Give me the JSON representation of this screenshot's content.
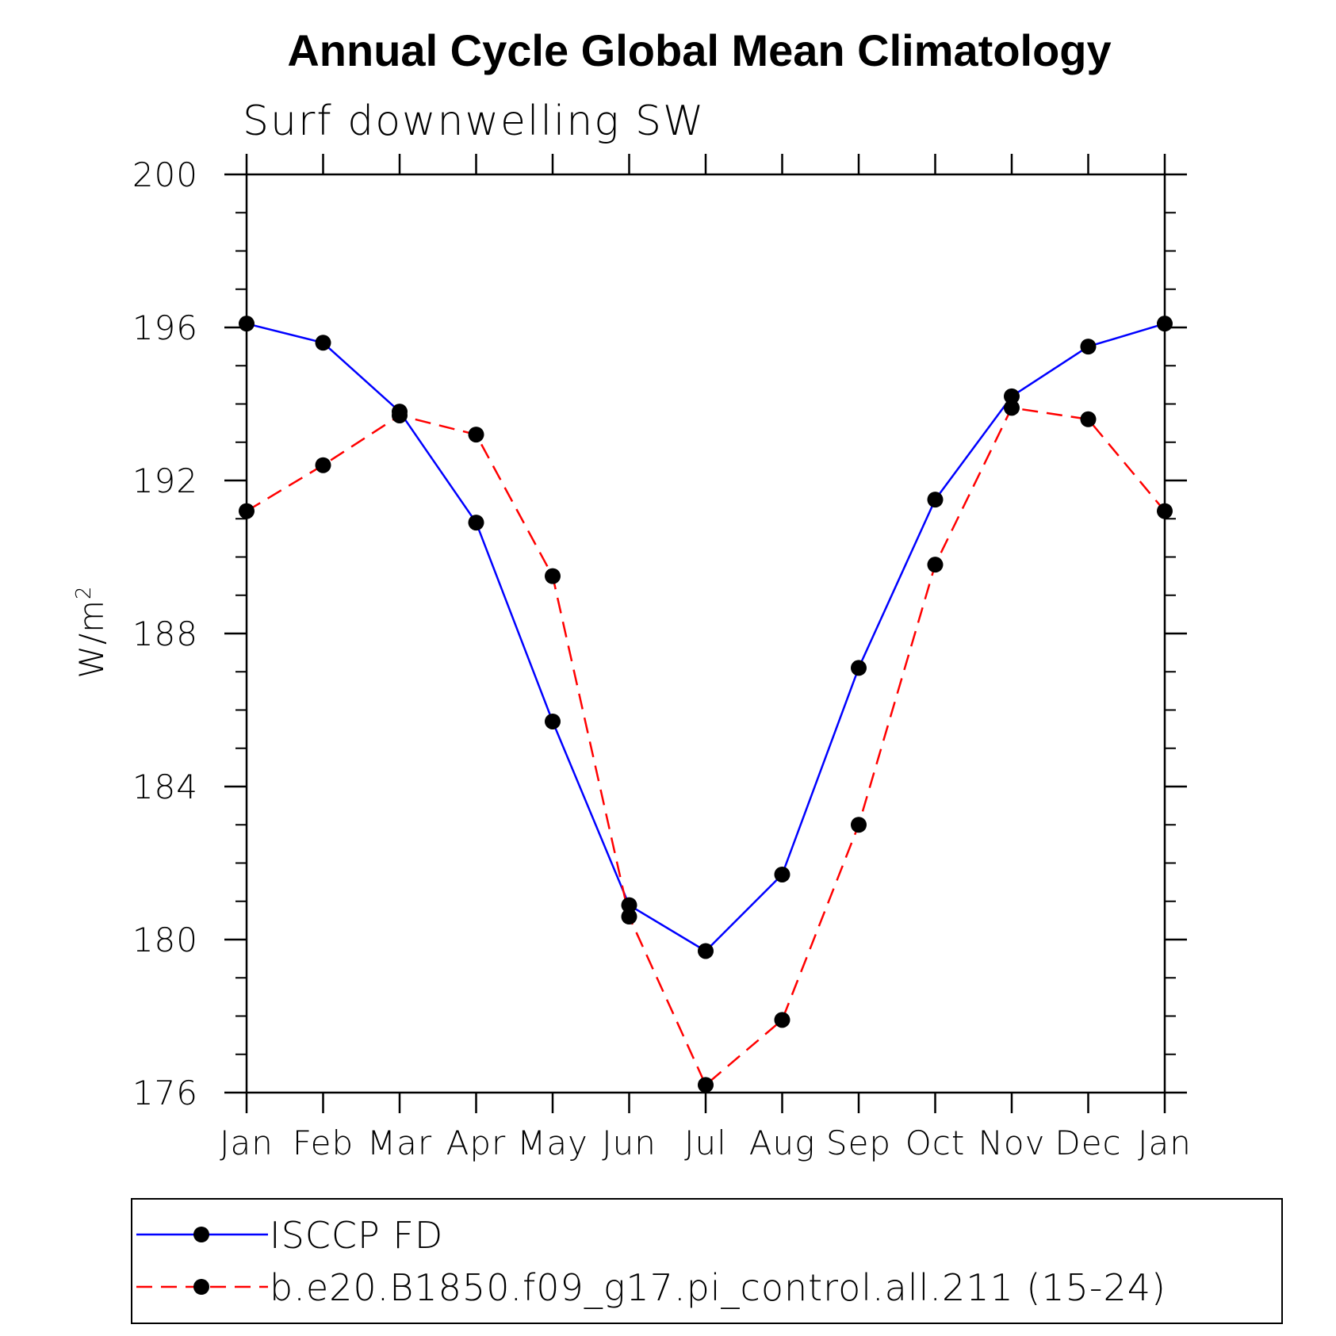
{
  "chart_data": {
    "type": "line",
    "title": "Annual Cycle Global Mean Climatology",
    "subtitle": "Surf downwelling SW",
    "ylabel": "W/m",
    "ylabel_superscript": "2",
    "ylim": [
      176,
      200
    ],
    "yticks": [
      "176",
      "180",
      "184",
      "188",
      "192",
      "196",
      "200"
    ],
    "categories": [
      "Jan",
      "Feb",
      "Mar",
      "Apr",
      "May",
      "Jun",
      "Jul",
      "Aug",
      "Sep",
      "Oct",
      "Nov",
      "Dec",
      "Jan"
    ],
    "series": [
      {
        "name": "ISCCP FD",
        "color": "#0000ff",
        "dash": "solid",
        "marker": "filled-circle",
        "values": [
          196.1,
          195.6,
          193.8,
          190.9,
          185.7,
          180.9,
          179.7,
          181.7,
          187.1,
          191.5,
          194.2,
          195.5,
          196.1
        ]
      },
      {
        "name": "b.e20.B1850.f09_g17.pi_control.all.211 (15-24)",
        "color": "#ff0000",
        "dash": "dashed",
        "marker": "filled-circle",
        "values": [
          191.2,
          192.4,
          193.7,
          193.2,
          189.5,
          180.6,
          176.2,
          177.9,
          183.0,
          189.8,
          193.9,
          193.6,
          191.2
        ]
      }
    ],
    "grid": false,
    "legend_position": "bottom"
  }
}
